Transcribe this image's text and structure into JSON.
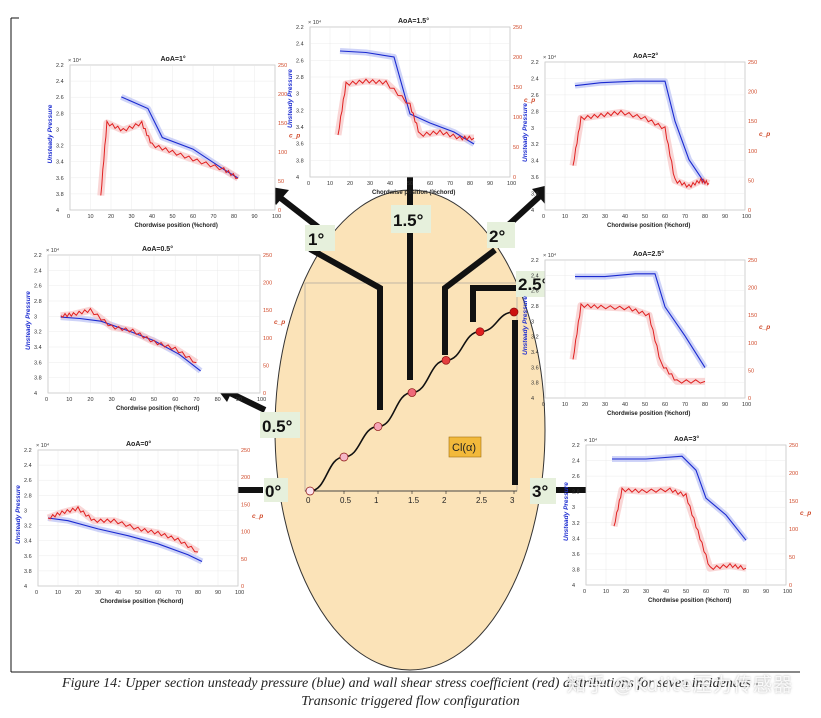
{
  "figure": {
    "caption_line1": "Figure 14: Upper section unsteady pressure (blue) and wall shear stress coefficient (red) distributions for seven incidences -",
    "caption_line2": "Transonic triggered flow configuration",
    "watermark": "知乎 @Kulite压力传感器",
    "colors": {
      "pressure": "#1a2ad0",
      "shear": "#e02020",
      "ellipse": "#fbe3b8",
      "arrow": "#111111"
    }
  },
  "panels": [
    {
      "id": "aoa0",
      "title": "AoA=0°",
      "xlabel": "Chordwise position (%chord)",
      "ylabel_left": "Unsteady Pressure",
      "ylabel_right": "c_p"
    },
    {
      "id": "aoa05",
      "title": "AoA=0.5°",
      "xlabel": "Chordwise position (%chord)",
      "ylabel_left": "Unsteady Pressure",
      "ylabel_right": "c_p"
    },
    {
      "id": "aoa1",
      "title": "AoA=1°",
      "xlabel": "Chordwise position (%chord)",
      "ylabel_left": "Unsteady Pressure",
      "ylabel_right": "c_p"
    },
    {
      "id": "aoa15",
      "title": "AoA=1.5°",
      "xlabel": "Chordwise position (%chord)",
      "ylabel_left": "Unsteady Pressure",
      "ylabel_right": "c_p"
    },
    {
      "id": "aoa2",
      "title": "AoA=2°",
      "xlabel": "Chordwise position (%chord)",
      "ylabel_left": "Unsteady Pressure",
      "ylabel_right": "c_p"
    },
    {
      "id": "aoa25",
      "title": "AoA=2.5°",
      "xlabel": "Chordwise position (%chord)",
      "ylabel_left": "Unsteady Pressure",
      "ylabel_right": "c_p"
    },
    {
      "id": "aoa3",
      "title": "AoA=3°",
      "xlabel": "Chordwise position (%chord)",
      "ylabel_left": "Unsteady Pressure",
      "ylabel_right": "c_p"
    }
  ],
  "angle_labels": [
    "0°",
    "0.5°",
    "1°",
    "1.5°",
    "2°",
    "2.5°",
    "3°"
  ],
  "cl_curve": {
    "label": "Cl(α)",
    "x_ticks": [
      "0",
      "0.5",
      "1",
      "1.5",
      "2",
      "2.5",
      "3"
    ],
    "points": [
      {
        "alpha": 0,
        "cl": 0.0
      },
      {
        "alpha": 0.5,
        "cl": 0.19
      },
      {
        "alpha": 1,
        "cl": 0.36
      },
      {
        "alpha": 1.5,
        "cl": 0.55
      },
      {
        "alpha": 2,
        "cl": 0.73
      },
      {
        "alpha": 2.5,
        "cl": 0.89
      },
      {
        "alpha": 3,
        "cl": 1.0
      }
    ]
  },
  "chart_ticks": {
    "x": [
      "0",
      "10",
      "20",
      "30",
      "40",
      "50",
      "60",
      "70",
      "80",
      "90",
      "100"
    ],
    "y_left": [
      "2.2",
      "2.4",
      "2.6",
      "2.8",
      "3",
      "3.2",
      "3.4",
      "3.6",
      "3.8",
      "4"
    ],
    "y_right": [
      "250",
      "200",
      "150",
      "100",
      "50",
      "0"
    ],
    "y_multiplier": "× 10⁴"
  }
}
